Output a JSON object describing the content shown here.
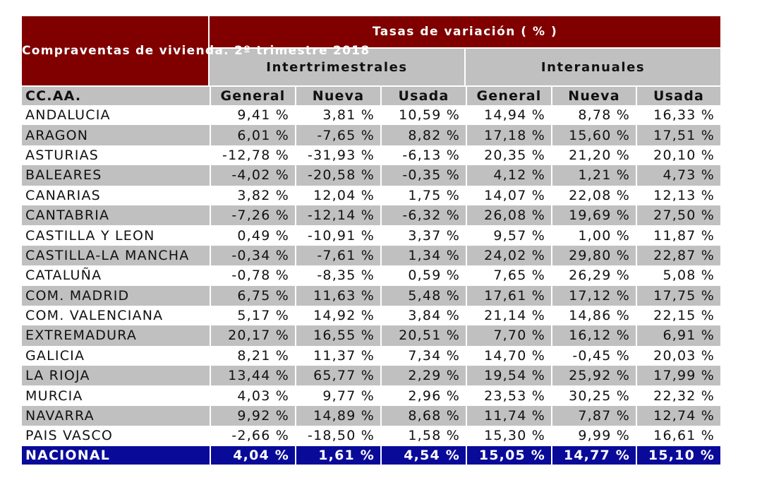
{
  "header": {
    "title": "Compraventas de vivienda. 2º trimestre 2018",
    "tasas": "Tasas de variación ( % )",
    "groups": [
      "Intertrimestrales",
      "Interanuales"
    ],
    "region_col": "CC.AA.",
    "columns": [
      "General",
      "Nueva",
      "Usada",
      "General",
      "Nueva",
      "Usada"
    ]
  },
  "rows": [
    {
      "region": "ANDALUCIA",
      "values": [
        "9,41 %",
        "3,81 %",
        "10,59 %",
        "14,94 %",
        "8,78 %",
        "16,33 %"
      ]
    },
    {
      "region": "ARAGON",
      "values": [
        "6,01 %",
        "-7,65 %",
        "8,82 %",
        "17,18 %",
        "15,60 %",
        "17,51 %"
      ]
    },
    {
      "region": "ASTURIAS",
      "values": [
        "-12,78 %",
        "-31,93 %",
        "-6,13 %",
        "20,35 %",
        "21,20 %",
        "20,10 %"
      ]
    },
    {
      "region": "BALEARES",
      "values": [
        "-4,02 %",
        "-20,58 %",
        "-0,35 %",
        "4,12 %",
        "1,21 %",
        "4,73 %"
      ]
    },
    {
      "region": "CANARIAS",
      "values": [
        "3,82 %",
        "12,04 %",
        "1,75 %",
        "14,07 %",
        "22,08 %",
        "12,13 %"
      ]
    },
    {
      "region": "CANTABRIA",
      "values": [
        "-7,26 %",
        "-12,14 %",
        "-6,32 %",
        "26,08 %",
        "19,69 %",
        "27,50 %"
      ]
    },
    {
      "region": "CASTILLA Y LEON",
      "values": [
        "0,49 %",
        "-10,91 %",
        "3,37 %",
        "9,57 %",
        "1,00 %",
        "11,87 %"
      ]
    },
    {
      "region": "CASTILLA-LA MANCHA",
      "values": [
        "-0,34 %",
        "-7,61 %",
        "1,34 %",
        "24,02 %",
        "29,80 %",
        "22,87 %"
      ]
    },
    {
      "region": "CATALUÑA",
      "values": [
        "-0,78 %",
        "-8,35 %",
        "0,59 %",
        "7,65 %",
        "26,29 %",
        "5,08 %"
      ]
    },
    {
      "region": "COM. MADRID",
      "values": [
        "6,75 %",
        "11,63 %",
        "5,48 %",
        "17,61 %",
        "17,12 %",
        "17,75 %"
      ]
    },
    {
      "region": "COM. VALENCIANA",
      "values": [
        "5,17 %",
        "14,92 %",
        "3,84 %",
        "21,14 %",
        "14,86 %",
        "22,15 %"
      ]
    },
    {
      "region": "EXTREMADURA",
      "values": [
        "20,17 %",
        "16,55 %",
        "20,51 %",
        "7,70 %",
        "16,12 %",
        "6,91 %"
      ]
    },
    {
      "region": "GALICIA",
      "values": [
        "8,21 %",
        "11,37 %",
        "7,34 %",
        "14,70 %",
        "-0,45 %",
        "20,03 %"
      ]
    },
    {
      "region": "LA RIOJA",
      "values": [
        "13,44 %",
        "65,77 %",
        "2,29 %",
        "19,54 %",
        "25,92 %",
        "17,99 %"
      ]
    },
    {
      "region": "MURCIA",
      "values": [
        "4,03 %",
        "9,77 %",
        "2,96 %",
        "23,53 %",
        "30,25 %",
        "22,32 %"
      ]
    },
    {
      "region": "NAVARRA",
      "values": [
        "9,92 %",
        "14,89 %",
        "8,68 %",
        "11,74 %",
        "7,87 %",
        "12,74 %"
      ]
    },
    {
      "region": "PAIS VASCO",
      "values": [
        "-2,66 %",
        "-18,50 %",
        "1,58 %",
        "15,30 %",
        "9,99 %",
        "16,61 %"
      ]
    }
  ],
  "nacional": {
    "region": "NACIONAL",
    "values": [
      "4,04 %",
      "1,61 %",
      "4,54 %",
      "15,05 %",
      "14,77 %",
      "15,10 %"
    ]
  },
  "colors": {
    "title_bg": "#800000",
    "header_gray": "#c0c0c0",
    "nacional_bg": "#0a0a99"
  }
}
